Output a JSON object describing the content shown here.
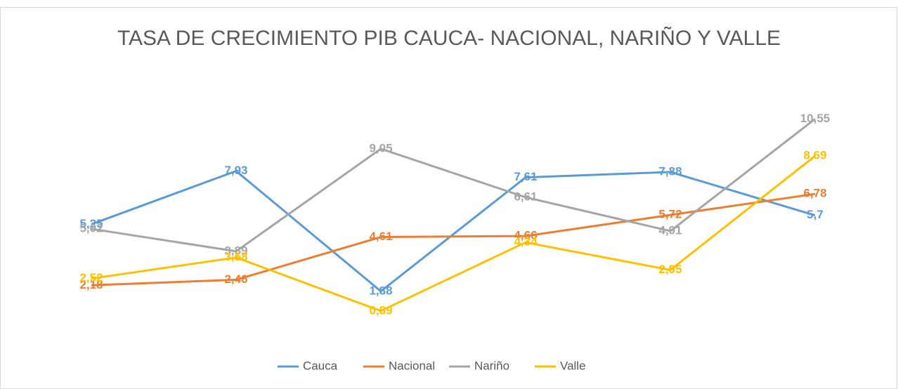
{
  "chart_data": {
    "type": "line",
    "title": "TASA DE CRECIMIENTO PIB CAUCA- NACIONAL, NARIÑO Y VALLE",
    "categories": [
      null,
      null,
      null,
      null,
      null,
      null
    ],
    "series": [
      {
        "name": "Cauca",
        "color": "#5b9bd5",
        "values": [
          5.25,
          7.93,
          1.88,
          7.61,
          7.88,
          5.7
        ],
        "value_labels": [
          "5,25",
          "7,93",
          "1,88",
          "7,61",
          "7,88",
          "5,7"
        ]
      },
      {
        "name": "Nacional",
        "color": "#ed7d31",
        "values": [
          2.18,
          2.46,
          4.61,
          4.66,
          5.72,
          6.78
        ],
        "value_labels": [
          "2,18",
          "2,46",
          "4,61",
          "4,66",
          "5,72",
          "6,78"
        ]
      },
      {
        "name": "Nariño",
        "color": "#a5a5a5",
        "values": [
          5.02,
          3.89,
          9.05,
          6.61,
          4.91,
          10.55
        ],
        "value_labels": [
          "5,02",
          "3,89",
          "9,05",
          "6,61",
          "4,91",
          "10,55"
        ]
      },
      {
        "name": "Valle",
        "color": "#ffc000",
        "values": [
          2.52,
          3.58,
          0.89,
          4.34,
          2.95,
          8.69
        ],
        "value_labels": [
          "2,52",
          "3,58",
          "0,89",
          "4,34",
          "2,95",
          "8,69"
        ]
      }
    ],
    "legend": "bottom"
  }
}
